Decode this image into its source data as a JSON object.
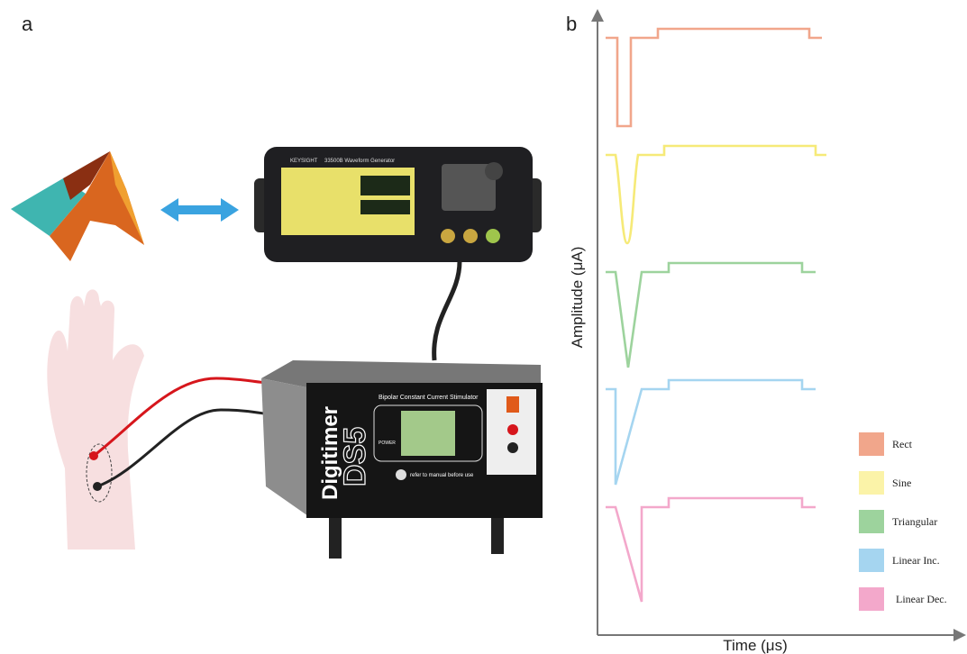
{
  "panel_a": {
    "label": "a",
    "generator": {
      "brand": "KEYSIGHT",
      "model": "33500B Waveform Generator"
    },
    "stimulator": {
      "brand": "Digitimer",
      "model": "DS5",
      "subtitle": "Bipolar Constant Current Stimulator",
      "power": "POWER",
      "note": "refer to manual before use"
    }
  },
  "panel_b": {
    "label": "b",
    "y_axis_label": "Amplitude (μA)",
    "x_axis_label": "Time (μs)",
    "legend": [
      "Rect",
      "Sine",
      "Triangular",
      "Linear Inc.",
      "Linear Dec."
    ]
  }
}
